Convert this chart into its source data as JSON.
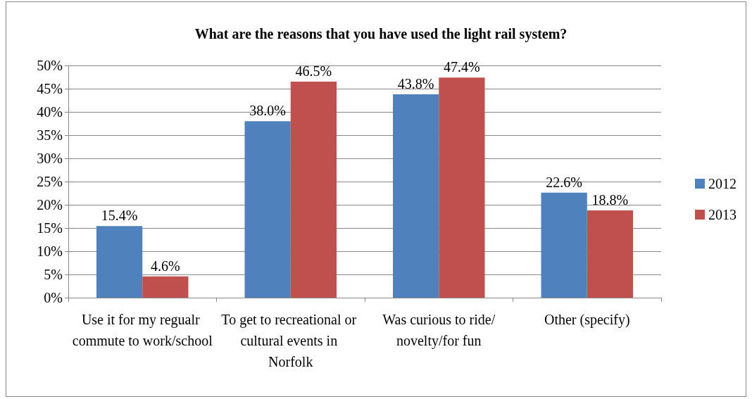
{
  "chart_data": {
    "type": "bar",
    "title": "What are the reasons that you have used the light rail system?",
    "categories": [
      "Use it for my regualr commute to work/school",
      "To get to recreational or cultural events in Norfolk",
      "Was curious to ride/novelty/for fun",
      "Other (specify)"
    ],
    "series": [
      {
        "name": "2012",
        "color": "#4f81bd",
        "values": [
          15.4,
          38.0,
          43.8,
          22.6
        ],
        "value_labels": [
          "15.4%",
          "38.0%",
          "43.8%",
          "22.6%"
        ]
      },
      {
        "name": "2013",
        "color": "#c0504d",
        "values": [
          4.6,
          46.5,
          47.4,
          18.8
        ],
        "value_labels": [
          "4.6%",
          "46.5%",
          "47.4%",
          "18.8%"
        ]
      }
    ],
    "ylim": [
      0,
      50
    ],
    "yticks": [
      {
        "value": 0,
        "label": "0%"
      },
      {
        "value": 5,
        "label": "5%"
      },
      {
        "value": 10,
        "label": "10%"
      },
      {
        "value": 15,
        "label": "15%"
      },
      {
        "value": 20,
        "label": "20%"
      },
      {
        "value": 25,
        "label": "25%"
      },
      {
        "value": 30,
        "label": "30%"
      },
      {
        "value": 35,
        "label": "35%"
      },
      {
        "value": 40,
        "label": "40%"
      },
      {
        "value": 45,
        "label": "45%"
      },
      {
        "value": 50,
        "label": "50%"
      }
    ],
    "grid": "y",
    "legend": "right"
  }
}
